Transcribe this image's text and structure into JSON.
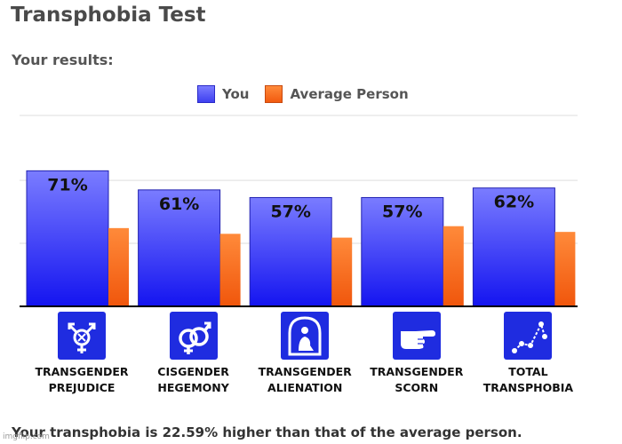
{
  "title": "Transphobia Test",
  "subtitle": "Your results:",
  "legend": {
    "you": "You",
    "average": "Average Person"
  },
  "footer": "Your transphobia is 22.59% higher than that of the average person.",
  "watermark": "imgflip.com",
  "colors": {
    "you_top": "#7a7cff",
    "you_bottom": "#1414f0",
    "avg_top": "#ff8a3a",
    "avg_bottom": "#f0560c",
    "icon_bg": "#1f2ce0"
  },
  "chart_data": {
    "type": "bar",
    "categories": [
      "TRANSGENDER PREJUDICE",
      "CISGENDER HEGEMONY",
      "TRANSGENDER ALIENATION",
      "TRANSGENDER SCORN",
      "TOTAL TRANSPHOBIA"
    ],
    "category_lines": [
      [
        "TRANSGENDER",
        "PREJUDICE"
      ],
      [
        "CISGENDER",
        "HEGEMONY"
      ],
      [
        "TRANSGENDER",
        "ALIENATION"
      ],
      [
        "TRANSGENDER",
        "SCORN"
      ],
      [
        "TOTAL",
        "TRANSPHOBIA"
      ]
    ],
    "category_icons": [
      "transgender-symbol-icon",
      "cisgender-symbol-icon",
      "person-in-bubble-icon",
      "pointing-hand-icon",
      "chart-dots-icon"
    ],
    "series": [
      {
        "name": "You",
        "values": [
          71,
          61,
          57,
          57,
          62
        ],
        "labels": [
          "71%",
          "61%",
          "57%",
          "57%",
          "62%"
        ]
      },
      {
        "name": "Average Person",
        "values": [
          41,
          38,
          36,
          42,
          39
        ]
      }
    ],
    "ylim": [
      0,
      100
    ],
    "grid": true,
    "legend_position": "top-center"
  }
}
